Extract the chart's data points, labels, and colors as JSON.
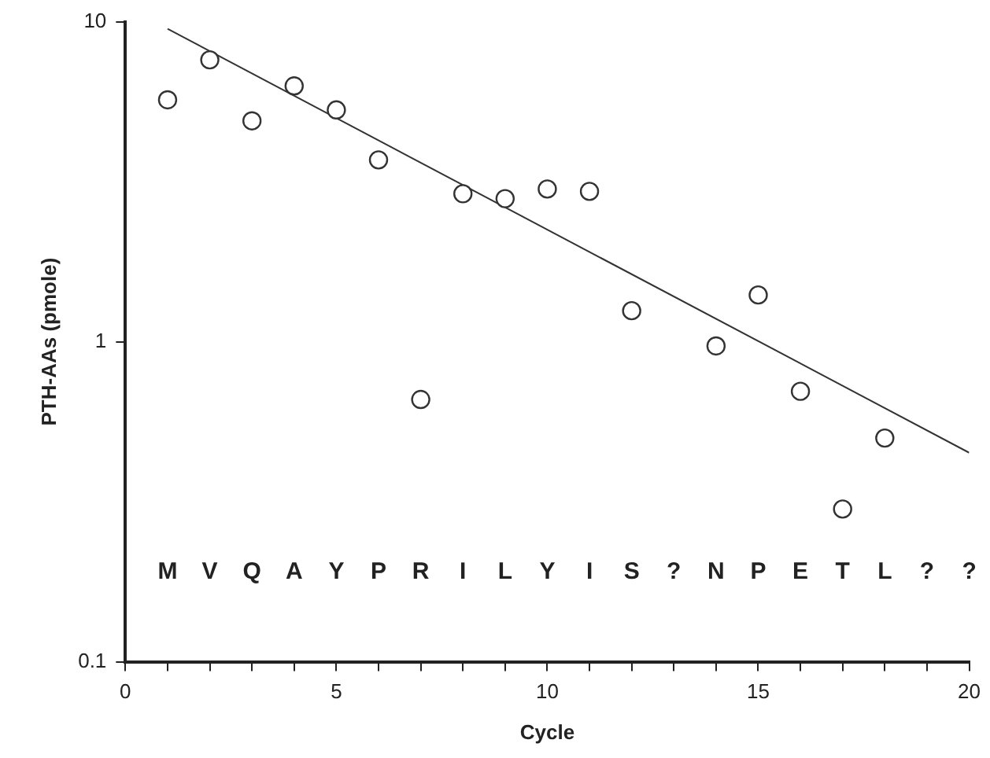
{
  "chart_data": {
    "type": "scatter",
    "xlabel": "Cycle",
    "ylabel": "PTH-AAs (pmole)",
    "log": "y",
    "grid": false,
    "legend": false,
    "marker": "circle",
    "xlim": [
      0,
      20
    ],
    "ylim": [
      0.1,
      10
    ],
    "xticks": [
      0,
      {
        "value": 1,
        "label": null
      },
      {
        "value": 2,
        "label": null
      },
      {
        "value": 3,
        "label": null
      },
      {
        "value": 4,
        "label": null
      },
      5,
      {
        "value": 6,
        "label": null
      },
      {
        "value": 7,
        "label": null
      },
      {
        "value": 8,
        "label": null
      },
      {
        "value": 9,
        "label": null
      },
      10,
      {
        "value": 11,
        "label": null
      },
      {
        "value": 12,
        "label": null
      },
      {
        "value": 13,
        "label": null
      },
      {
        "value": 14,
        "label": null
      },
      15,
      {
        "value": 16,
        "label": null
      },
      {
        "value": 17,
        "label": null
      },
      {
        "value": 18,
        "label": null
      },
      {
        "value": 19,
        "label": null
      },
      20
    ],
    "yticks": [
      0.1,
      1,
      10
    ],
    "series": [
      {
        "color": "#333333",
        "x": [
          1,
          2,
          3,
          4,
          5,
          6,
          7,
          8,
          9,
          10,
          11,
          12,
          14,
          15,
          16,
          17,
          18
        ],
        "values": [
          5.7,
          7.6,
          4.9,
          6.3,
          5.3,
          3.7,
          0.66,
          2.9,
          2.8,
          3.0,
          2.95,
          1.25,
          0.97,
          1.4,
          0.7,
          0.3,
          0.5
        ]
      },
      {
        "type": "line",
        "color": "#333333",
        "marker": "none",
        "x": [
          1,
          20
        ],
        "values": [
          9.5,
          0.45
        ]
      }
    ],
    "annotations": [
      "M",
      "V",
      "Q",
      "A",
      "Y",
      "P",
      "R",
      "I",
      "L",
      "Y",
      "I",
      "S",
      "?",
      "N",
      "P",
      "E",
      "T",
      "L",
      "?",
      "?"
    ]
  }
}
